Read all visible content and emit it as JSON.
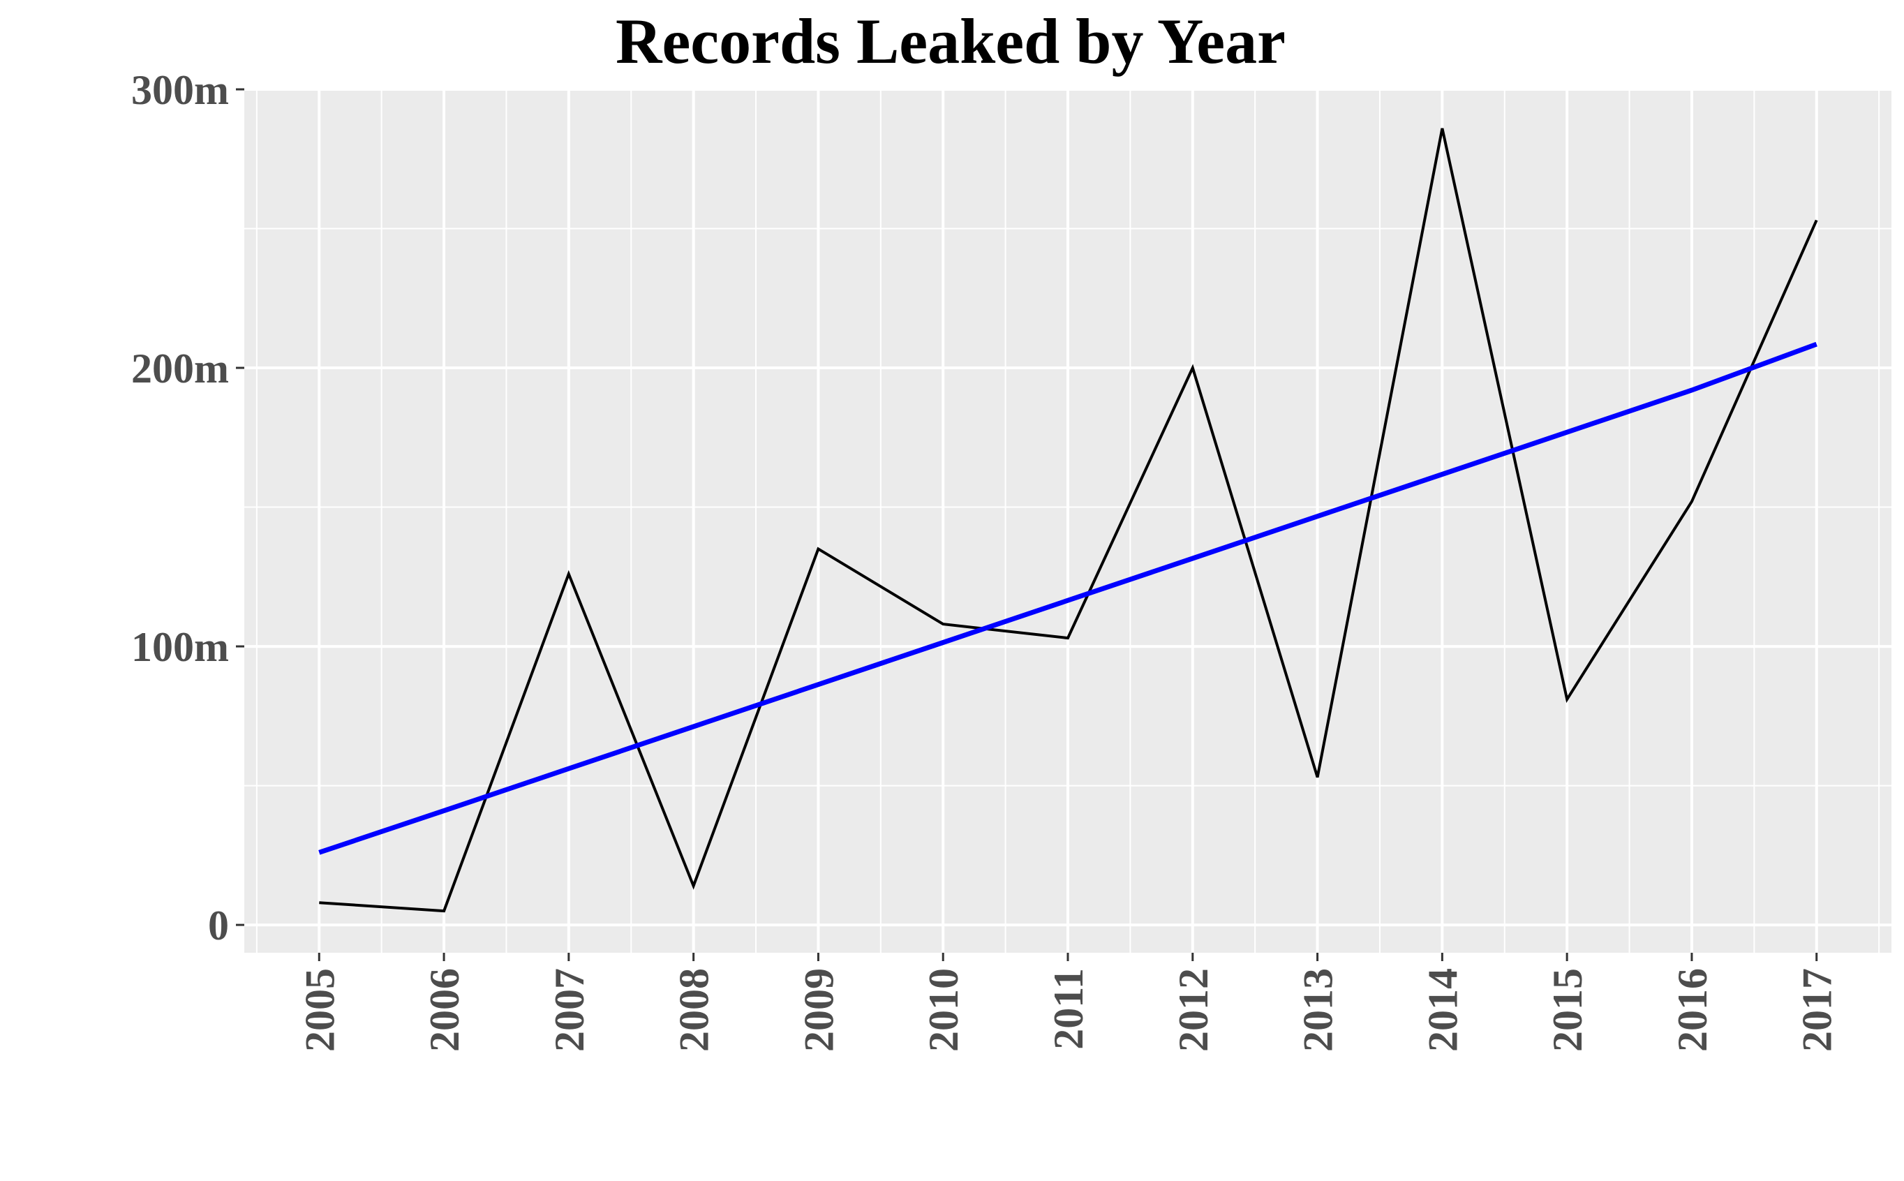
{
  "chart_data": {
    "type": "line",
    "title": "Records Leaked by Year",
    "xlabel": "",
    "ylabel": "",
    "x": [
      2005,
      2006,
      2007,
      2008,
      2009,
      2010,
      2011,
      2012,
      2013,
      2014,
      2015,
      2016,
      2017
    ],
    "x_tick_labels": [
      "2005",
      "2006",
      "2007",
      "2008",
      "2009",
      "2010",
      "2011",
      "2012",
      "2013",
      "2014",
      "2015",
      "2016",
      "2017"
    ],
    "y_ticks": [
      0,
      100,
      200,
      300
    ],
    "y_tick_labels": [
      "0",
      "100m",
      "200m",
      "300m"
    ],
    "ylim": [
      -10,
      300
    ],
    "xlim": [
      2004.4,
      2017.6
    ],
    "series": [
      {
        "role": "records",
        "color": "#000000",
        "values": [
          8,
          5,
          126,
          14,
          135,
          108,
          103,
          200,
          53,
          286,
          81,
          152,
          253
        ]
      },
      {
        "role": "linear-trend",
        "color": "#0000ff",
        "values": [
          26,
          41,
          56.1,
          71.2,
          86.3,
          101.4,
          116.5,
          131.6,
          146.7,
          161.8,
          176.9,
          192,
          208.5
        ]
      }
    ],
    "panel_background": "#ebebeb",
    "grid": true,
    "legend": "none"
  }
}
